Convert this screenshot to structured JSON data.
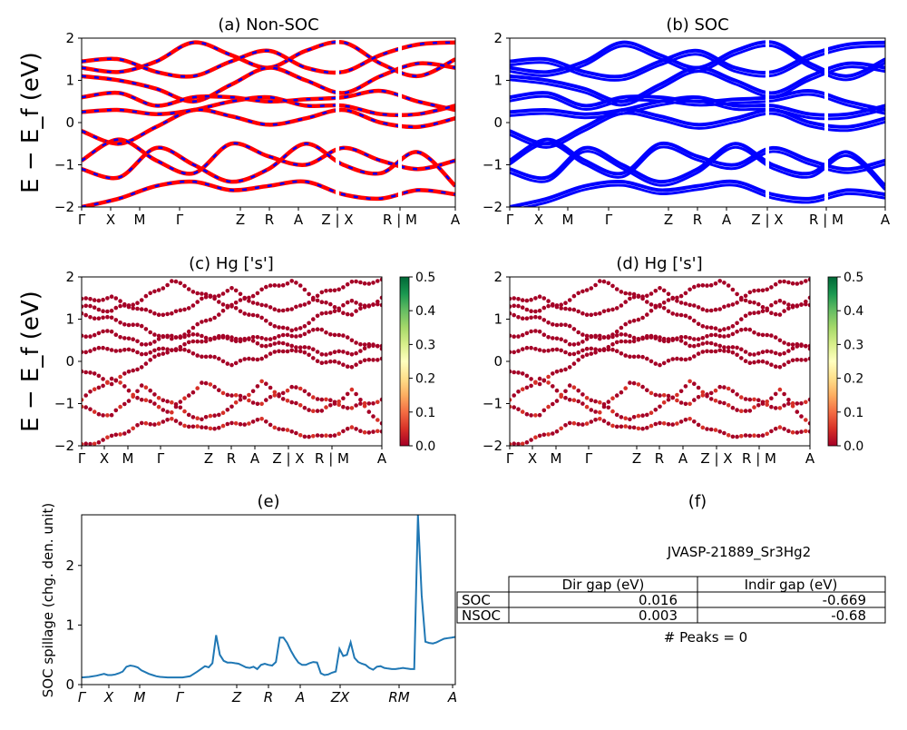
{
  "chart_data": [
    {
      "id": "a",
      "type": "line",
      "title": "(a) Non-SOC",
      "ylabel": "E − E_f (eV)",
      "ylim": [
        -2,
        2
      ],
      "yticks": [
        "2",
        "1",
        "0",
        "−1",
        "−2"
      ],
      "kpath_labels": [
        "Γ",
        "X",
        "M",
        "Γ",
        "Z",
        "R",
        "A",
        "Z | X",
        "R | M",
        "A"
      ],
      "series": [
        {
          "values": [
            1.3,
            1.2,
            1.45,
            1.9,
            1.6,
            1.3,
            1.7,
            1.9,
            1.4,
            1.1,
            1.5
          ]
        },
        {
          "values": [
            1.45,
            1.5,
            1.2,
            1.1,
            1.45,
            1.7,
            1.3,
            1.2,
            1.6,
            1.85,
            1.9
          ]
        },
        {
          "values": [
            1.1,
            1.0,
            0.8,
            0.5,
            0.9,
            1.3,
            1.0,
            0.7,
            1.1,
            1.4,
            1.3
          ]
        },
        {
          "values": [
            0.6,
            0.7,
            0.4,
            0.6,
            0.6,
            0.5,
            0.55,
            0.6,
            0.75,
            0.5,
            0.3
          ]
        },
        {
          "values": [
            0.25,
            0.3,
            0.2,
            0.3,
            0.5,
            0.6,
            0.4,
            0.4,
            0.2,
            0.2,
            0.4
          ]
        },
        {
          "values": [
            -0.2,
            -0.5,
            -0.1,
            0.3,
            0.15,
            -0.05,
            0.1,
            0.3,
            0.0,
            -0.1,
            0.1
          ]
        },
        {
          "values": [
            -0.9,
            -0.4,
            -0.9,
            -1.2,
            -0.5,
            -0.8,
            -1.0,
            -0.6,
            -0.9,
            -1.1,
            -0.9
          ]
        },
        {
          "values": [
            -1.1,
            -1.3,
            -0.6,
            -1.0,
            -1.4,
            -1.1,
            -0.5,
            -1.0,
            -1.2,
            -0.7,
            -1.5
          ]
        },
        {
          "values": [
            -2.0,
            -1.8,
            -1.5,
            -1.4,
            -1.6,
            -1.5,
            -1.4,
            -1.7,
            -1.8,
            -1.6,
            -1.7
          ]
        }
      ]
    },
    {
      "id": "b",
      "type": "line",
      "title": "(b) SOC",
      "ylim": [
        -2,
        2
      ],
      "yticks": [
        "2",
        "1",
        "0",
        "−1",
        "−2"
      ],
      "kpath_labels": [
        "Γ",
        "X",
        "M",
        "Γ",
        "Z",
        "R",
        "A",
        "Z | X",
        "R | M",
        "A"
      ],
      "series": [
        {
          "values": [
            1.3,
            1.2,
            1.45,
            1.9,
            1.6,
            1.3,
            1.7,
            1.9,
            1.4,
            1.1,
            1.5
          ]
        },
        {
          "values": [
            1.45,
            1.5,
            1.2,
            1.1,
            1.45,
            1.7,
            1.3,
            1.2,
            1.6,
            1.85,
            1.9
          ]
        },
        {
          "values": [
            1.1,
            1.0,
            0.8,
            0.5,
            0.9,
            1.3,
            1.0,
            0.7,
            1.1,
            1.4,
            1.3
          ]
        },
        {
          "values": [
            0.6,
            0.7,
            0.4,
            0.6,
            0.6,
            0.5,
            0.55,
            0.6,
            0.75,
            0.5,
            0.3
          ]
        },
        {
          "values": [
            0.25,
            0.3,
            0.2,
            0.3,
            0.5,
            0.6,
            0.4,
            0.4,
            0.2,
            0.2,
            0.4
          ]
        },
        {
          "values": [
            -0.2,
            -0.5,
            -0.1,
            0.3,
            0.15,
            -0.05,
            0.1,
            0.3,
            0.0,
            -0.1,
            0.1
          ]
        },
        {
          "values": [
            -0.9,
            -0.4,
            -0.9,
            -1.2,
            -0.5,
            -0.8,
            -1.0,
            -0.6,
            -0.9,
            -1.1,
            -0.9
          ]
        },
        {
          "values": [
            -1.1,
            -1.3,
            -0.6,
            -1.0,
            -1.4,
            -1.1,
            -0.5,
            -1.0,
            -1.2,
            -0.7,
            -1.5
          ]
        },
        {
          "values": [
            -2.0,
            -1.8,
            -1.5,
            -1.4,
            -1.6,
            -1.5,
            -1.4,
            -1.7,
            -1.8,
            -1.6,
            -1.7
          ]
        }
      ]
    },
    {
      "id": "c",
      "type": "scatter",
      "title": "(c)  Hg ['s']",
      "ylabel": "E − E_f (eV)",
      "ylim": [
        -2,
        2
      ],
      "yticks": [
        "2",
        "1",
        "0",
        "−1",
        "−2"
      ],
      "kpath_labels": [
        "Γ",
        "X",
        "M",
        "Γ",
        "Z",
        "R",
        "A",
        "Z | X",
        "R | M",
        "A"
      ],
      "colorbar": {
        "range": [
          0.0,
          0.5
        ],
        "ticks": [
          "0.5",
          "0.4",
          "0.3",
          "0.2",
          "0.1",
          "0.0"
        ]
      }
    },
    {
      "id": "d",
      "type": "scatter",
      "title": "(d) Hg ['s']",
      "ylim": [
        -2,
        2
      ],
      "yticks": [
        "2",
        "1",
        "0",
        "−1",
        "−2"
      ],
      "kpath_labels": [
        "Γ",
        "X",
        "M",
        "Γ",
        "Z",
        "R",
        "A",
        "Z | X",
        "R | M",
        "A"
      ],
      "colorbar": {
        "range": [
          0.0,
          0.5
        ],
        "ticks": [
          "0.5",
          "0.4",
          "0.3",
          "0.2",
          "0.1",
          "0.0"
        ]
      }
    },
    {
      "id": "e",
      "type": "line",
      "title": "(e)",
      "ylabel": "SOC spillage (chg. den. unit)",
      "ylim": [
        0,
        2.85
      ],
      "yticks": [
        "2",
        "1",
        "0"
      ],
      "kpath_labels": [
        "Γ",
        "X",
        "M",
        "Γ",
        "Z",
        "R",
        "A",
        "ZX",
        "RM",
        "A"
      ],
      "x": [
        0,
        2,
        4,
        6,
        7,
        8,
        9,
        10,
        11,
        12,
        13,
        14,
        15,
        16,
        17,
        18,
        19,
        20,
        21,
        23,
        25,
        27,
        29,
        31,
        33,
        34,
        35,
        36,
        37,
        38,
        39,
        40,
        41,
        42,
        43,
        44,
        45,
        46,
        47,
        48,
        49,
        50,
        51,
        52,
        53,
        54,
        55,
        56,
        57,
        58,
        59,
        60,
        61,
        62,
        63,
        64,
        65,
        66,
        67,
        68,
        69,
        70,
        71,
        72,
        73,
        74,
        75,
        76,
        77,
        78,
        79,
        80,
        81,
        82,
        83,
        84,
        85,
        86,
        87,
        88,
        89,
        90,
        91,
        92,
        93,
        94,
        95,
        96,
        97,
        98,
        99,
        100
      ],
      "values": [
        0.12,
        0.13,
        0.15,
        0.18,
        0.16,
        0.16,
        0.17,
        0.19,
        0.22,
        0.3,
        0.32,
        0.31,
        0.29,
        0.24,
        0.21,
        0.18,
        0.16,
        0.14,
        0.13,
        0.12,
        0.12,
        0.12,
        0.14,
        0.22,
        0.31,
        0.29,
        0.36,
        0.83,
        0.5,
        0.4,
        0.37,
        0.37,
        0.36,
        0.35,
        0.32,
        0.29,
        0.28,
        0.3,
        0.26,
        0.33,
        0.35,
        0.33,
        0.32,
        0.38,
        0.79,
        0.79,
        0.7,
        0.57,
        0.46,
        0.37,
        0.33,
        0.33,
        0.36,
        0.38,
        0.37,
        0.19,
        0.16,
        0.17,
        0.2,
        0.22,
        0.6,
        0.48,
        0.5,
        0.71,
        0.45,
        0.38,
        0.35,
        0.33,
        0.28,
        0.25,
        0.3,
        0.31,
        0.28,
        0.27,
        0.26,
        0.26,
        0.27,
        0.28,
        0.27,
        0.26,
        0.26,
        2.85,
        1.5,
        0.72,
        0.7,
        0.69,
        0.71,
        0.74,
        0.77,
        0.78,
        0.79,
        0.8
      ]
    }
  ],
  "panel_f": {
    "title": "(f)",
    "material_id": "JVASP-21889_Sr3Hg2",
    "table": {
      "columns": [
        "",
        "Dir gap (eV)",
        "Indir gap (eV)"
      ],
      "rows": [
        [
          "SOC",
          "0.016",
          "-0.669"
        ],
        [
          "NSOC",
          "0.003",
          "-0.68"
        ]
      ]
    },
    "peaks": "# Peaks = 0"
  },
  "colors": {
    "nonsoc_red": "#ff0000",
    "nonsoc_blue": "#0000ff",
    "soc_blue": "#0000ff",
    "spillage_line": "#1f77b4",
    "dot_dark": "#a50026",
    "dot_light": "#d73027"
  }
}
